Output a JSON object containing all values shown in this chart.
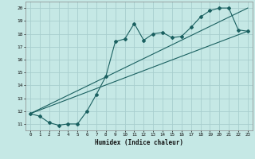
{
  "xlabel": "Humidex (Indice chaleur)",
  "bg_color": "#c5e8e5",
  "grid_color": "#a8cece",
  "line_color": "#1a6060",
  "xlim": [
    -0.5,
    23.5
  ],
  "ylim": [
    10.5,
    20.5
  ],
  "xticks": [
    0,
    1,
    2,
    3,
    4,
    5,
    6,
    7,
    8,
    9,
    10,
    11,
    12,
    13,
    14,
    15,
    16,
    17,
    18,
    19,
    20,
    21,
    22,
    23
  ],
  "yticks": [
    11,
    12,
    13,
    14,
    15,
    16,
    17,
    18,
    19,
    20
  ],
  "line1_x": [
    0,
    1,
    2,
    3,
    4,
    5,
    6,
    7,
    8,
    9,
    10,
    11,
    12,
    13,
    14,
    15,
    16,
    17,
    18,
    19,
    20,
    21,
    22,
    23
  ],
  "line1_y": [
    11.8,
    11.6,
    11.1,
    10.9,
    11.0,
    11.0,
    12.0,
    13.3,
    14.7,
    17.4,
    17.6,
    18.8,
    17.5,
    18.0,
    18.1,
    17.7,
    17.8,
    18.5,
    19.3,
    19.8,
    20.0,
    20.0,
    18.3,
    18.2
  ],
  "line2_x": [
    0,
    23
  ],
  "line2_y": [
    11.8,
    18.2
  ],
  "line3_x": [
    0,
    23
  ],
  "line3_y": [
    11.8,
    20.0
  ]
}
